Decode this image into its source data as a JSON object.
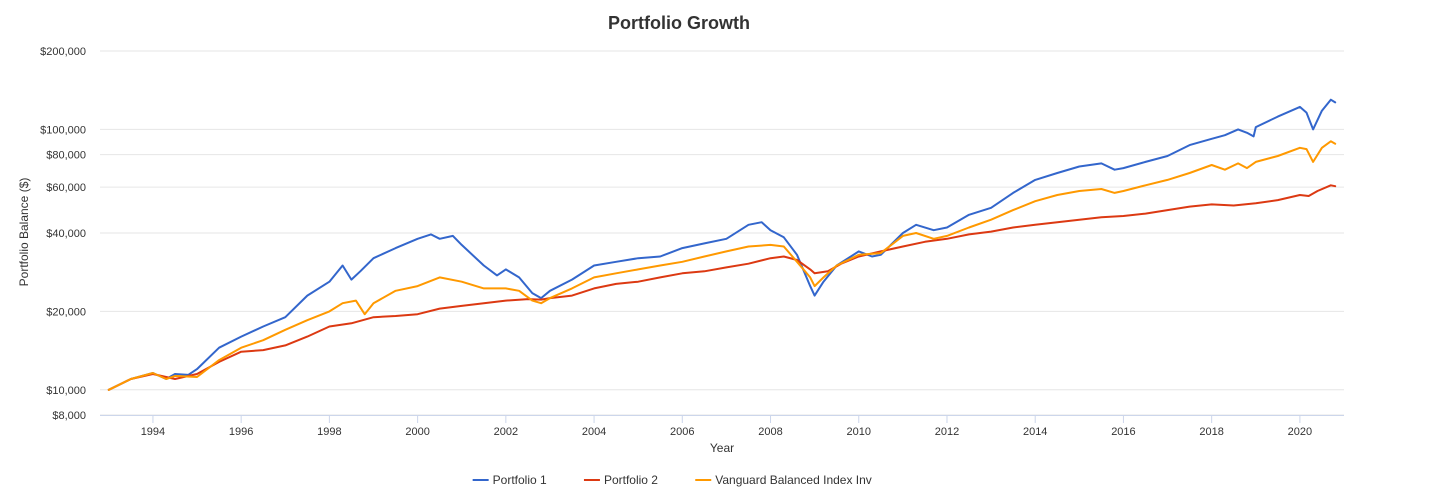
{
  "chart_data": {
    "type": "line",
    "title": "Portfolio Growth",
    "xlabel": "Year",
    "ylabel": "Portfolio Balance ($)",
    "yscale": "log",
    "ylim": [
      8000,
      200000
    ],
    "xlim": [
      1992.8,
      2021.0
    ],
    "y_ticks": [
      {
        "value": 8000,
        "label": "$8,000"
      },
      {
        "value": 10000,
        "label": "$10,000"
      },
      {
        "value": 20000,
        "label": "$20,000"
      },
      {
        "value": 40000,
        "label": "$40,000"
      },
      {
        "value": 60000,
        "label": "$60,000"
      },
      {
        "value": 80000,
        "label": "$80,000"
      },
      {
        "value": 100000,
        "label": "$100,000"
      },
      {
        "value": 200000,
        "label": "$200,000"
      }
    ],
    "x_ticks": [
      {
        "value": 1994,
        "label": "1994"
      },
      {
        "value": 1996,
        "label": "1996"
      },
      {
        "value": 1998,
        "label": "1998"
      },
      {
        "value": 2000,
        "label": "2000"
      },
      {
        "value": 2002,
        "label": "2002"
      },
      {
        "value": 2004,
        "label": "2004"
      },
      {
        "value": 2006,
        "label": "2006"
      },
      {
        "value": 2008,
        "label": "2008"
      },
      {
        "value": 2010,
        "label": "2010"
      },
      {
        "value": 2012,
        "label": "2012"
      },
      {
        "value": 2014,
        "label": "2014"
      },
      {
        "value": 2016,
        "label": "2016"
      },
      {
        "value": 2018,
        "label": "2018"
      },
      {
        "value": 2020,
        "label": "2020"
      }
    ],
    "legend_position": "bottom-center",
    "series": [
      {
        "name": "Portfolio 1",
        "color": "#3366cc",
        "x": [
          1993.0,
          1993.5,
          1994.0,
          1994.3,
          1994.5,
          1994.8,
          1995.0,
          1995.5,
          1996.0,
          1996.5,
          1997.0,
          1997.5,
          1998.0,
          1998.3,
          1998.5,
          1998.7,
          1999.0,
          1999.5,
          2000.0,
          2000.3,
          2000.5,
          2000.8,
          2001.0,
          2001.5,
          2001.8,
          2002.0,
          2002.3,
          2002.6,
          2002.8,
          2003.0,
          2003.5,
          2004.0,
          2004.5,
          2005.0,
          2005.5,
          2006.0,
          2006.5,
          2007.0,
          2007.5,
          2007.8,
          2008.0,
          2008.3,
          2008.6,
          2008.9,
          2009.0,
          2009.2,
          2009.5,
          2010.0,
          2010.3,
          2010.5,
          2011.0,
          2011.3,
          2011.7,
          2012.0,
          2012.5,
          2013.0,
          2013.5,
          2014.0,
          2014.5,
          2015.0,
          2015.5,
          2015.8,
          2016.0,
          2016.5,
          2017.0,
          2017.5,
          2018.0,
          2018.3,
          2018.6,
          2018.8,
          2018.95,
          2019.0,
          2019.5,
          2020.0,
          2020.15,
          2020.3,
          2020.5,
          2020.7,
          2020.8
        ],
        "values": [
          10000,
          11000,
          11600,
          11000,
          11500,
          11400,
          12000,
          14500,
          16000,
          17500,
          19000,
          23000,
          26000,
          30000,
          26500,
          28500,
          32000,
          35000,
          38000,
          39500,
          38000,
          39000,
          36000,
          30000,
          27500,
          29000,
          27000,
          23500,
          22500,
          24000,
          26500,
          30000,
          31000,
          32000,
          32500,
          35000,
          36500,
          38000,
          43000,
          44000,
          41000,
          38500,
          33000,
          25000,
          23000,
          26000,
          30000,
          34000,
          32500,
          33000,
          40000,
          43000,
          41000,
          42000,
          47000,
          50000,
          57000,
          64000,
          68000,
          72000,
          74000,
          70000,
          71000,
          75000,
          79000,
          87000,
          92000,
          95000,
          100000,
          97000,
          94000,
          102000,
          112000,
          122000,
          116000,
          100000,
          118000,
          130000,
          127000
        ]
      },
      {
        "name": "Portfolio 2",
        "color": "#dc3912",
        "x": [
          1993.0,
          1993.5,
          1994.0,
          1994.3,
          1994.5,
          1995.0,
          1995.5,
          1996.0,
          1996.5,
          1997.0,
          1997.5,
          1998.0,
          1998.5,
          1999.0,
          1999.5,
          2000.0,
          2000.5,
          2001.0,
          2001.5,
          2002.0,
          2002.5,
          2002.8,
          2003.0,
          2003.5,
          2004.0,
          2004.5,
          2005.0,
          2005.5,
          2006.0,
          2006.5,
          2007.0,
          2007.5,
          2008.0,
          2008.3,
          2008.6,
          2008.9,
          2009.0,
          2009.3,
          2009.6,
          2010.0,
          2010.5,
          2011.0,
          2011.5,
          2012.0,
          2012.5,
          2013.0,
          2013.5,
          2014.0,
          2014.5,
          2015.0,
          2015.5,
          2016.0,
          2016.5,
          2017.0,
          2017.5,
          2018.0,
          2018.5,
          2019.0,
          2019.5,
          2020.0,
          2020.2,
          2020.4,
          2020.7,
          2020.8
        ],
        "values": [
          10000,
          11000,
          11500,
          11200,
          11000,
          11500,
          12800,
          14000,
          14200,
          14800,
          16000,
          17500,
          18000,
          19000,
          19200,
          19500,
          20500,
          21000,
          21500,
          22000,
          22300,
          22200,
          22500,
          23000,
          24500,
          25500,
          26000,
          27000,
          28000,
          28500,
          29500,
          30500,
          32000,
          32500,
          31500,
          29000,
          28000,
          28500,
          30500,
          32500,
          34000,
          35500,
          37000,
          38000,
          39500,
          40500,
          42000,
          43000,
          44000,
          45000,
          46000,
          46500,
          47500,
          49000,
          50500,
          51500,
          51000,
          52000,
          53500,
          56000,
          55500,
          58000,
          61000,
          60500
        ]
      },
      {
        "name": "Vanguard Balanced Index Inv",
        "color": "#ff9900",
        "x": [
          1993.0,
          1993.5,
          1994.0,
          1994.3,
          1994.5,
          1995.0,
          1995.5,
          1996.0,
          1996.5,
          1997.0,
          1997.5,
          1998.0,
          1998.3,
          1998.6,
          1998.8,
          1999.0,
          1999.5,
          2000.0,
          2000.5,
          2001.0,
          2001.5,
          2002.0,
          2002.3,
          2002.6,
          2002.8,
          2003.0,
          2003.5,
          2004.0,
          2004.5,
          2005.0,
          2005.5,
          2006.0,
          2006.5,
          2007.0,
          2007.5,
          2008.0,
          2008.3,
          2008.6,
          2008.9,
          2009.0,
          2009.2,
          2009.5,
          2010.0,
          2010.5,
          2011.0,
          2011.3,
          2011.7,
          2012.0,
          2012.5,
          2013.0,
          2013.5,
          2014.0,
          2014.5,
          2015.0,
          2015.5,
          2015.8,
          2016.0,
          2016.5,
          2017.0,
          2017.5,
          2018.0,
          2018.3,
          2018.6,
          2018.8,
          2019.0,
          2019.5,
          2020.0,
          2020.15,
          2020.3,
          2020.5,
          2020.7,
          2020.8
        ],
        "values": [
          10000,
          11000,
          11600,
          11000,
          11300,
          11200,
          13000,
          14500,
          15500,
          17000,
          18500,
          20000,
          21500,
          22000,
          19500,
          21500,
          24000,
          25000,
          27000,
          26000,
          24500,
          24500,
          24000,
          22000,
          21500,
          22500,
          24500,
          27000,
          28000,
          29000,
          30000,
          31000,
          32500,
          34000,
          35500,
          36000,
          35500,
          31000,
          27000,
          25000,
          27000,
          30000,
          33000,
          33500,
          39000,
          40000,
          38000,
          39000,
          42000,
          45000,
          49000,
          53000,
          56000,
          58000,
          59000,
          57000,
          58000,
          61000,
          64000,
          68000,
          73000,
          70000,
          74000,
          71000,
          75000,
          79000,
          85000,
          84000,
          75000,
          85000,
          90000,
          88000
        ]
      }
    ]
  }
}
